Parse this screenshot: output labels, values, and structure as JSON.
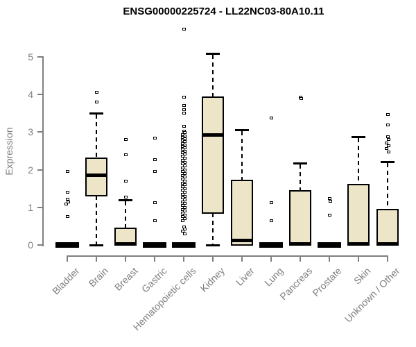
{
  "chart_data": {
    "type": "box",
    "title": "ENSG00000225724 - LL22NC03-80A10.11",
    "ylabel": "Expression",
    "xlabel": "",
    "ylim": [
      0,
      5
    ],
    "yticks": [
      "0",
      "1",
      "2",
      "3",
      "4",
      "5"
    ],
    "grid": false,
    "legend": "none",
    "categories": [
      "Bladder",
      "Brain",
      "Breast",
      "Gastric",
      "Hematopoietic cells",
      "Kidney",
      "Liver",
      "Lung",
      "Pancreas",
      "Prostate",
      "Skin",
      "Unknown / Other"
    ],
    "series": [
      {
        "name": "Bladder",
        "q1": 0,
        "median": 0,
        "q3": 0,
        "whisker_low": 0,
        "whisker_high": 0,
        "outliers": [
          1.95,
          1.4,
          1.22,
          1.15,
          1.08,
          0.75
        ]
      },
      {
        "name": "Brain",
        "q1": 1.31,
        "median": 1.86,
        "q3": 2.3,
        "whisker_low": 0,
        "whisker_high": 3.5,
        "outliers": [
          4.05,
          3.8
        ]
      },
      {
        "name": "Breast",
        "q1": 0,
        "median": 0.03,
        "q3": 0.45,
        "whisker_low": 0,
        "whisker_high": 1.2,
        "outliers": [
          2.8,
          2.4,
          1.7,
          1.28
        ]
      },
      {
        "name": "Gastric",
        "q1": 0,
        "median": 0,
        "q3": 0,
        "whisker_low": 0,
        "whisker_high": 0,
        "outliers": [
          2.85,
          2.27,
          1.95,
          1.13,
          0.65
        ]
      },
      {
        "name": "Hematopoietic cells",
        "q1": 0,
        "median": 0,
        "q3": 0,
        "whisker_low": 0,
        "whisker_high": 0,
        "outliers": [
          5.74,
          3.93,
          3.7,
          3.6,
          3.5,
          3.15,
          3.02,
          2.98,
          2.94,
          2.9,
          2.86,
          2.82,
          2.78,
          2.74,
          2.7,
          2.66,
          2.62,
          2.58,
          2.54,
          2.5,
          2.46,
          2.42,
          2.36,
          2.3,
          2.25,
          2.2,
          2.15,
          2.1,
          2.05,
          2.0,
          1.95,
          1.9,
          1.85,
          1.8,
          1.75,
          1.7,
          1.65,
          1.6,
          1.55,
          1.5,
          1.45,
          1.4,
          1.35,
          1.3,
          1.25,
          1.2,
          1.15,
          1.1,
          1.05,
          1.0,
          0.95,
          0.9,
          0.85,
          0.8,
          0.75,
          0.7,
          0.65,
          0.48,
          0.42,
          0.36,
          0.3
        ]
      },
      {
        "name": "Kidney",
        "q1": 0.85,
        "median": 2.92,
        "q3": 3.93,
        "whisker_low": 0,
        "whisker_high": 5.1,
        "outliers": []
      },
      {
        "name": "Liver",
        "q1": 0,
        "median": 0.12,
        "q3": 1.72,
        "whisker_low": 0,
        "whisker_high": 3.06,
        "outliers": []
      },
      {
        "name": "Lung",
        "q1": 0,
        "median": 0,
        "q3": 0,
        "whisker_low": 0,
        "whisker_high": 0,
        "outliers": [
          3.38,
          1.13,
          0.65
        ]
      },
      {
        "name": "Pancreas",
        "q1": 0,
        "median": 0.03,
        "q3": 1.44,
        "whisker_low": 0,
        "whisker_high": 2.18,
        "outliers": [
          3.93,
          3.9
        ]
      },
      {
        "name": "Prostate",
        "q1": 0,
        "median": 0,
        "q3": 0,
        "whisker_low": 0,
        "whisker_high": 0,
        "outliers": [
          1.23,
          1.17,
          0.8
        ]
      },
      {
        "name": "Skin",
        "q1": 0,
        "median": 0.03,
        "q3": 1.6,
        "whisker_low": 0,
        "whisker_high": 2.88,
        "outliers": []
      },
      {
        "name": "Unknown / Other",
        "q1": 0,
        "median": 0.03,
        "q3": 0.95,
        "whisker_low": 0,
        "whisker_high": 2.21,
        "outliers": [
          3.47,
          3.19,
          2.88,
          2.8,
          2.72,
          2.64,
          2.56,
          2.48
        ]
      }
    ],
    "colors": {
      "box_fill": "#ede5c7",
      "box_line": "#000000",
      "axis": "#7f7f7f",
      "tick_label": "#7f7f7f",
      "title": "#000000",
      "background": "#ffffff"
    }
  }
}
